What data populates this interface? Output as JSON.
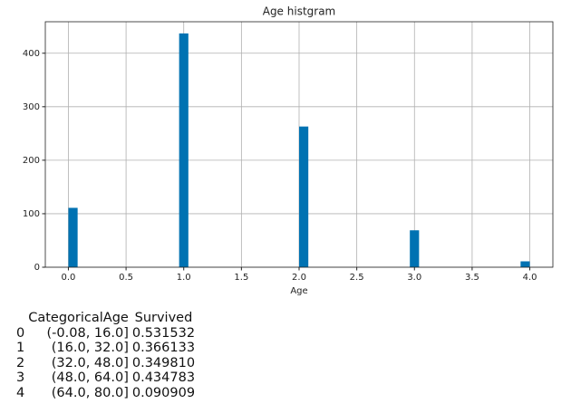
{
  "chart_data": {
    "type": "histogram",
    "title": "Age histgram",
    "x_label": "Age",
    "bins": [
      0,
      0.08,
      0.16,
      0.24,
      0.32,
      0.4,
      0.48,
      0.56,
      0.64,
      0.72,
      0.8,
      0.88,
      0.96,
      1.04,
      1.12,
      1.2,
      1.28,
      1.36,
      1.44,
      1.52,
      1.6,
      1.68,
      1.76,
      1.84,
      1.92,
      2.0,
      2.08,
      2.16,
      2.24,
      2.32,
      2.4,
      2.48,
      2.56,
      2.64,
      2.72,
      2.8,
      2.88,
      2.96,
      3.04,
      3.12,
      3.2,
      3.28,
      3.36,
      3.44,
      3.52,
      3.6,
      3.68,
      3.76,
      3.84,
      3.92,
      4.0
    ],
    "values": [
      111,
      0,
      0,
      0,
      0,
      0,
      0,
      0,
      0,
      0,
      0,
      0,
      437,
      0,
      0,
      0,
      0,
      0,
      0,
      0,
      0,
      0,
      0,
      0,
      0,
      263,
      0,
      0,
      0,
      0,
      0,
      0,
      0,
      0,
      0,
      0,
      0,
      69,
      0,
      0,
      0,
      0,
      0,
      0,
      0,
      0,
      0,
      0,
      0,
      11
    ],
    "color": "#0072b2",
    "xlim": [
      -0.2,
      4.2
    ],
    "xticks": [
      {
        "value": 0,
        "label": "0.0"
      },
      0.5,
      {
        "value": 1,
        "label": "1.0"
      },
      1.5,
      {
        "value": 2,
        "label": "2.0"
      },
      2.5,
      {
        "value": 3,
        "label": "3.0"
      },
      3.5,
      {
        "value": 4,
        "label": "4.0"
      }
    ],
    "ylim": [
      0,
      458.85
    ],
    "yticks": [
      0,
      100,
      200,
      300,
      400
    ],
    "grid": true
  },
  "table": {
    "columns": [
      "CategoricalAge",
      "Survived"
    ],
    "rows": [
      [
        "0",
        "(-0.08, 16.0]",
        "0.531532"
      ],
      [
        "1",
        "(16.0, 32.0]",
        "0.366133"
      ],
      [
        "2",
        "(32.0, 48.0]",
        "0.349810"
      ],
      [
        "3",
        "(48.0, 64.0]",
        "0.434783"
      ],
      [
        "4",
        "(64.0, 80.0]",
        "0.090909"
      ]
    ]
  }
}
